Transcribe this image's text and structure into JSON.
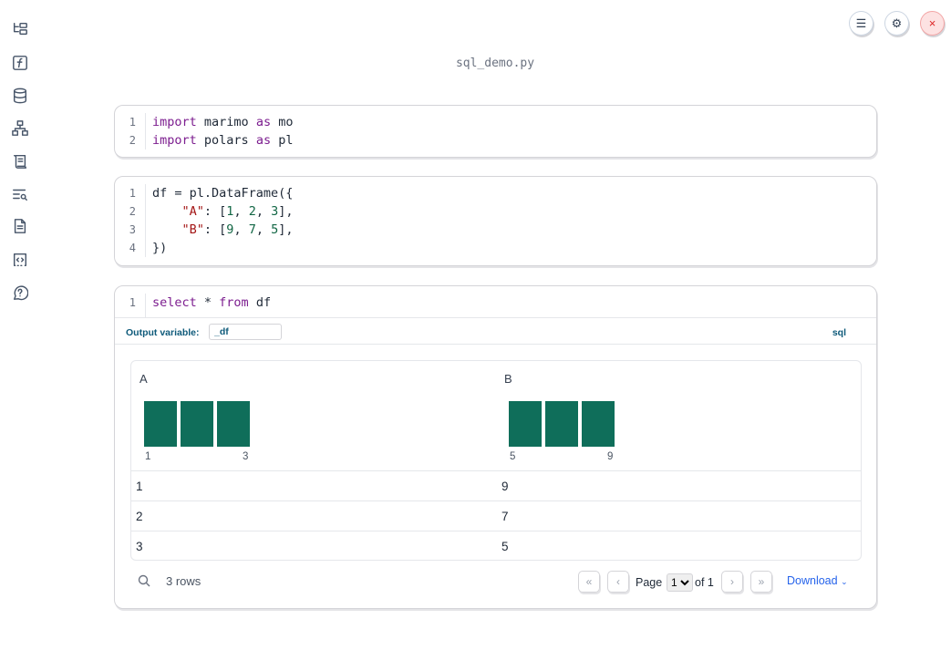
{
  "sidebar": {
    "icons": [
      "file-tree-icon",
      "function-icon",
      "database-icon",
      "dependency-graph-icon",
      "scroll-log-icon",
      "search-list-icon",
      "document-icon",
      "code-snippet-icon",
      "help-chat-icon"
    ]
  },
  "topbar": {
    "menu_icon": "☰",
    "settings_icon": "⚙",
    "close_icon": "×"
  },
  "notebook": {
    "title": "sql_demo.py"
  },
  "cells": [
    {
      "lines": [
        "1",
        "2"
      ]
    },
    {
      "lines": [
        "1",
        "2",
        "3",
        "4"
      ]
    },
    {
      "lines": [
        "1"
      ],
      "output_variable_label": "Output variable:",
      "output_variable_value": "_df",
      "language": "sql"
    }
  ],
  "table": {
    "columns": [
      {
        "name": "A",
        "hist_min": "1",
        "hist_max": "3",
        "hist_counts": [
          1,
          1,
          1
        ]
      },
      {
        "name": "B",
        "hist_min": "5",
        "hist_max": "9",
        "hist_counts": [
          1,
          1,
          1
        ]
      }
    ],
    "rows": [
      [
        "1",
        "9"
      ],
      [
        "2",
        "7"
      ],
      [
        "3",
        "5"
      ]
    ],
    "row_count": "3 rows",
    "page_label": "Page",
    "page_value": "1",
    "page_of": "of 1",
    "download_label": "Download",
    "bar_color": "#0f6e5a"
  }
}
